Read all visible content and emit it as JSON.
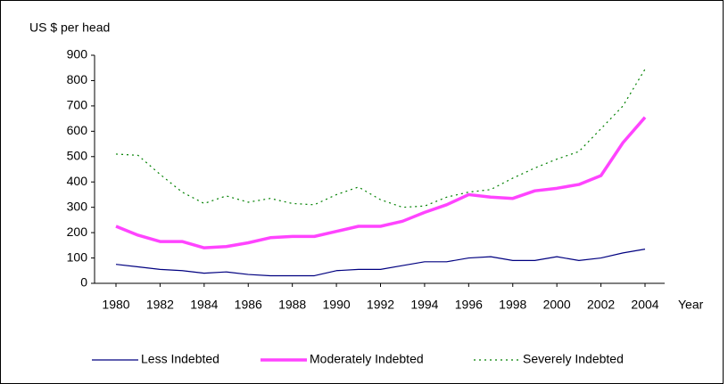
{
  "chart_data": {
    "type": "line",
    "y_label": "US $ per head",
    "x_label": "Year",
    "x": [
      1980,
      1981,
      1982,
      1983,
      1984,
      1985,
      1986,
      1987,
      1988,
      1989,
      1990,
      1991,
      1992,
      1993,
      1994,
      1995,
      1996,
      1997,
      1998,
      1999,
      2000,
      2001,
      2002,
      2003,
      2004
    ],
    "xlim": [
      1980,
      2004
    ],
    "xticks": [
      1980,
      1982,
      1984,
      1986,
      1988,
      1990,
      1992,
      1994,
      1996,
      1998,
      2000,
      2002,
      2004
    ],
    "ylim": [
      0,
      900
    ],
    "yticks": [
      0,
      100,
      200,
      300,
      400,
      500,
      600,
      700,
      800,
      900
    ],
    "grid": false,
    "legend": "bottom",
    "series": [
      {
        "name": "Less Indebted",
        "color": "#000080",
        "width": 1.2,
        "style": "solid",
        "values": [
          75,
          65,
          55,
          50,
          40,
          45,
          35,
          30,
          30,
          30,
          50,
          55,
          55,
          70,
          85,
          85,
          100,
          105,
          90,
          90,
          105,
          90,
          100,
          120,
          135
        ]
      },
      {
        "name": "Moderately Indebted",
        "color": "#ff44ff",
        "width": 3.5,
        "style": "solid",
        "values": [
          225,
          190,
          165,
          165,
          140,
          145,
          160,
          180,
          185,
          185,
          205,
          225,
          225,
          245,
          280,
          310,
          350,
          340,
          335,
          365,
          375,
          390,
          425,
          555,
          655
        ]
      },
      {
        "name": "Severely Indebted",
        "color": "#008000",
        "width": 1.2,
        "style": "dotted",
        "values": [
          510,
          505,
          430,
          360,
          315,
          345,
          320,
          335,
          315,
          310,
          350,
          380,
          330,
          300,
          305,
          340,
          360,
          370,
          415,
          455,
          490,
          520,
          610,
          700,
          845
        ]
      }
    ]
  }
}
